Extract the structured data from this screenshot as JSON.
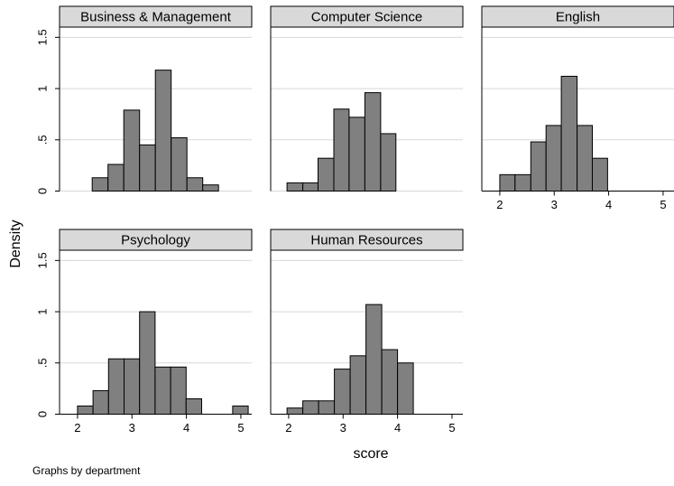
{
  "ylabel": "Density",
  "xlabel": "score",
  "note": "Graphs by department",
  "chart_data": [
    {
      "type": "histogram",
      "title": "Business & Management",
      "color": "#808080",
      "grid": true,
      "show_xticks": false,
      "show_yticks": true,
      "bins": [
        2.27,
        2.56,
        2.85,
        3.14,
        3.43,
        3.72,
        4.01,
        4.3,
        4.59
      ],
      "values": [
        0.13,
        0.26,
        0.79,
        0.45,
        1.18,
        0.52,
        0.13,
        0.06
      ],
      "xlim": [
        1.67,
        5.2
      ],
      "xticks": [
        2,
        3,
        4,
        5
      ],
      "ylim": [
        0,
        1.6
      ],
      "yticks": [
        0,
        {
          "value": 0.5,
          "label": ".5"
        },
        1,
        1.5
      ]
    },
    {
      "type": "histogram",
      "title": "Computer Science",
      "color": "#808080",
      "grid": true,
      "show_xticks": false,
      "show_yticks": false,
      "bins": [
        1.97,
        2.26,
        2.54,
        2.83,
        3.11,
        3.4,
        3.69,
        3.97
      ],
      "values": [
        0.08,
        0.08,
        0.32,
        0.8,
        0.72,
        0.96,
        0.56
      ],
      "xlim": [
        1.67,
        5.2
      ],
      "xticks": [
        2,
        3,
        4,
        5
      ],
      "ylim": [
        0,
        1.6
      ],
      "yticks": [
        0,
        {
          "value": 0.5,
          "label": ".5"
        },
        1,
        1.5
      ]
    },
    {
      "type": "histogram",
      "title": "English",
      "color": "#808080",
      "grid": true,
      "show_xticks": true,
      "show_yticks": false,
      "bins": [
        2.0,
        2.28,
        2.57,
        2.85,
        3.13,
        3.42,
        3.7,
        3.98
      ],
      "values": [
        0.16,
        0.16,
        0.48,
        0.64,
        1.12,
        0.64,
        0.32
      ],
      "xlim": [
        1.67,
        5.2
      ],
      "xticks": [
        2,
        3,
        4,
        5
      ],
      "ylim": [
        0,
        1.6
      ],
      "yticks": [
        0,
        {
          "value": 0.5,
          "label": ".5"
        },
        1,
        1.5
      ]
    },
    {
      "type": "histogram",
      "title": "Psychology",
      "color": "#808080",
      "grid": true,
      "show_xticks": true,
      "show_yticks": true,
      "bins": [
        2.0,
        2.285,
        2.57,
        2.855,
        3.14,
        3.425,
        3.71,
        3.995,
        4.28,
        4.565,
        4.85,
        5.135
      ],
      "values": [
        0.08,
        0.23,
        0.54,
        0.54,
        1.0,
        0.46,
        0.46,
        0.15,
        0,
        0,
        0.08
      ],
      "xlim": [
        1.67,
        5.2
      ],
      "xticks": [
        2,
        3,
        4,
        5
      ],
      "ylim": [
        0,
        1.6
      ],
      "yticks": [
        0,
        {
          "value": 0.5,
          "label": ".5"
        },
        1,
        1.5
      ]
    },
    {
      "type": "histogram",
      "title": "Human Resources",
      "color": "#808080",
      "grid": true,
      "show_xticks": true,
      "show_yticks": false,
      "bins": [
        1.97,
        2.26,
        2.55,
        2.84,
        3.13,
        3.42,
        3.71,
        4.0,
        4.29
      ],
      "values": [
        0.06,
        0.13,
        0.13,
        0.44,
        0.57,
        1.07,
        0.63,
        0.5
      ],
      "xlim": [
        1.67,
        5.2
      ],
      "xticks": [
        2,
        3,
        4,
        5
      ],
      "ylim": [
        0,
        1.6
      ],
      "yticks": [
        0,
        {
          "value": 0.5,
          "label": ".5"
        },
        1,
        1.5
      ]
    }
  ]
}
